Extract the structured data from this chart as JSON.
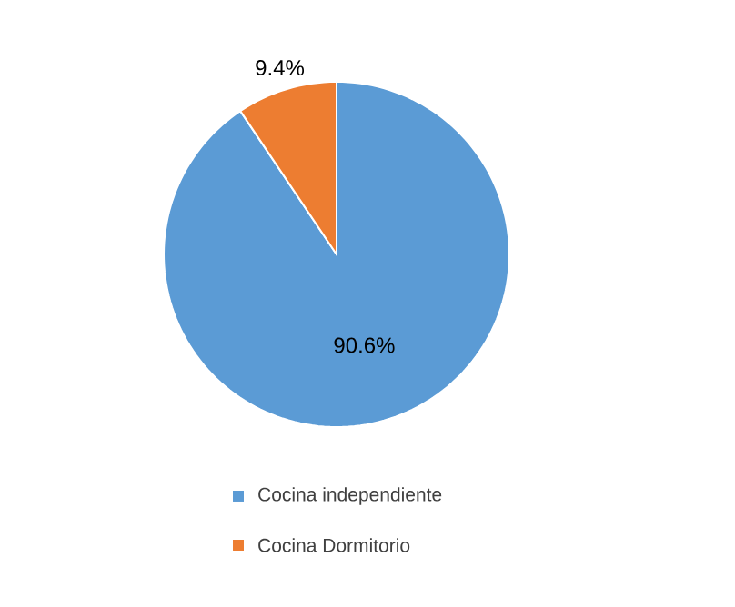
{
  "chart_data": {
    "type": "pie",
    "categories": [
      "Cocina independiente",
      "Cocina Dormitorio"
    ],
    "values": [
      90.6,
      9.4
    ],
    "colors": [
      "#5b9bd5",
      "#ed7d31"
    ],
    "value_labels": [
      "90.6%",
      "9.4%"
    ],
    "legend": "bottom"
  }
}
